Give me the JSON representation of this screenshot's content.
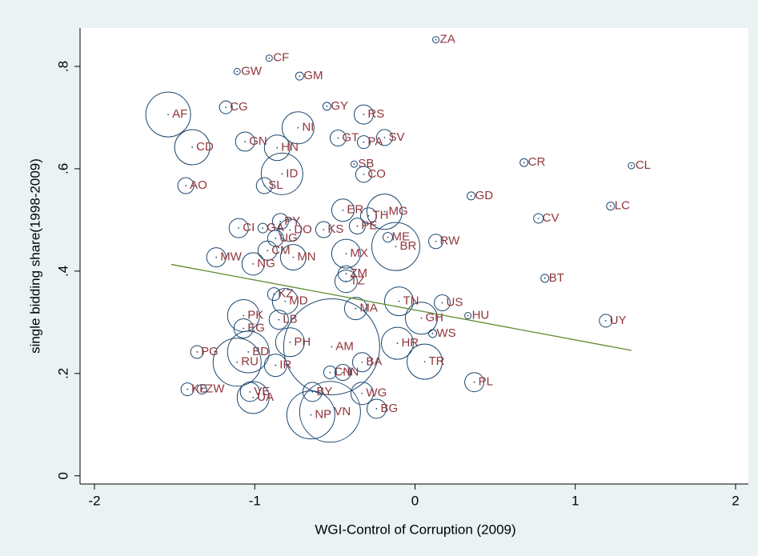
{
  "chart_data": {
    "type": "scatter",
    "x_label": "WGI-Control of Corruption (2009)",
    "y_label": "single bidding share(1998-2009)",
    "xlim": [
      -2.09,
      2.08
    ],
    "ylim": [
      -0.016,
      0.875
    ],
    "xticks": [
      -2,
      -1,
      0,
      1,
      2
    ],
    "yticks": [
      0,
      {
        "value": 0.2,
        "label": ".2"
      },
      {
        "value": 0.4,
        "label": ".4"
      },
      {
        "value": 0.6,
        "label": ".6"
      },
      {
        "value": 0.8,
        "label": ".8"
      }
    ],
    "series": [
      {
        "color": "#1a476f",
        "label_color": "#90353b",
        "labels": [
          "ZA",
          "CF",
          "GW",
          "GM",
          "AF",
          "CG",
          "GY",
          "RS",
          "NI",
          "SV",
          "GT",
          "PA",
          "GN",
          "CD",
          "HN",
          "SB",
          "CO",
          "CR",
          "CL",
          "ID",
          "AO",
          "SL",
          "GD",
          "LC",
          "CV",
          "MG",
          "ER",
          "TH",
          "PY",
          "CI",
          "GA",
          "DO",
          "KS",
          "PE",
          "ME",
          "BR",
          "RW",
          "UG",
          "CM",
          "MX",
          "MN",
          "MW",
          "NG",
          "ZM",
          "TZ",
          "BT",
          "KZ",
          "MD",
          "TN",
          "MA",
          "US",
          "GH",
          "HU",
          "UY",
          "WS",
          "LB",
          "PK",
          "EG",
          "PH",
          "AM",
          "HR",
          "TR",
          "PG",
          "BD",
          "RU",
          "IR",
          "BA",
          "CN",
          "IN",
          "PL",
          "KE",
          "ZW",
          "VE",
          "UA",
          "BY",
          "WG",
          "BG",
          "NP",
          "VN"
        ],
        "x": [
          0.13,
          -0.91,
          -1.11,
          -0.72,
          -1.54,
          -1.18,
          -0.55,
          -0.32,
          -0.73,
          -0.19,
          -0.48,
          -0.32,
          -1.06,
          -1.39,
          -0.86,
          -0.38,
          -0.32,
          0.68,
          1.35,
          -0.83,
          -1.43,
          -0.94,
          0.35,
          1.22,
          0.77,
          -0.19,
          -0.45,
          -0.29,
          -0.84,
          -1.1,
          -0.95,
          -0.78,
          -0.57,
          -0.36,
          -0.17,
          -0.12,
          0.13,
          -0.87,
          -0.92,
          -0.43,
          -0.76,
          -1.24,
          -1.01,
          -0.43,
          -0.43,
          0.81,
          -0.88,
          -0.81,
          -0.1,
          -0.37,
          0.17,
          0.04,
          0.33,
          1.19,
          0.11,
          -0.85,
          -1.07,
          -1.07,
          -0.78,
          -0.52,
          -0.11,
          0.06,
          -1.36,
          -1.04,
          -1.11,
          -0.87,
          -0.33,
          -0.53,
          -0.45,
          0.37,
          -1.42,
          -1.33,
          -1.03,
          -1.01,
          -0.64,
          -0.33,
          -0.24,
          -0.65,
          -0.53
        ],
        "values": [
          0.852,
          0.816,
          0.79,
          0.781,
          0.706,
          0.72,
          0.722,
          0.706,
          0.68,
          0.661,
          0.66,
          0.652,
          0.653,
          0.642,
          0.641,
          0.609,
          0.589,
          0.612,
          0.606,
          0.59,
          0.567,
          0.567,
          0.547,
          0.527,
          0.503,
          0.516,
          0.519,
          0.508,
          0.497,
          0.484,
          0.484,
          0.48,
          0.481,
          0.488,
          0.466,
          0.448,
          0.458,
          0.464,
          0.44,
          0.434,
          0.427,
          0.427,
          0.414,
          0.395,
          0.38,
          0.386,
          0.355,
          0.341,
          0.341,
          0.327,
          0.338,
          0.308,
          0.313,
          0.303,
          0.278,
          0.305,
          0.313,
          0.288,
          0.261,
          0.252,
          0.259,
          0.223,
          0.242,
          0.242,
          0.222,
          0.216,
          0.222,
          0.202,
          0.202,
          0.183,
          0.169,
          0.169,
          0.164,
          0.153,
          0.164,
          0.161,
          0.131,
          0.119,
          0.125
        ],
        "sizes": [
          16,
          16,
          16,
          25,
          784,
          64,
          25,
          144,
          400,
          100,
          100,
          64,
          144,
          484,
          256,
          16,
          100,
          25,
          16,
          676,
          100,
          100,
          25,
          25,
          36,
          484,
          196,
          100,
          100,
          144,
          36,
          196,
          100,
          100,
          36,
          900,
          81,
          100,
          144,
          324,
          256,
          144,
          196,
          100,
          196,
          25,
          64,
          256,
          324,
          196,
          100,
          400,
          16,
          64,
          25,
          144,
          400,
          144,
          324,
          3600,
          400,
          484,
          64,
          676,
          900,
          196,
          144,
          64,
          100,
          144,
          64,
          36,
          144,
          400,
          144,
          196,
          144,
          900,
          1444
        ]
      }
    ],
    "fit": {
      "color": "#5d8a2f",
      "x": [
        -1.52,
        1.35
      ],
      "values": [
        0.413,
        0.245
      ]
    }
  }
}
